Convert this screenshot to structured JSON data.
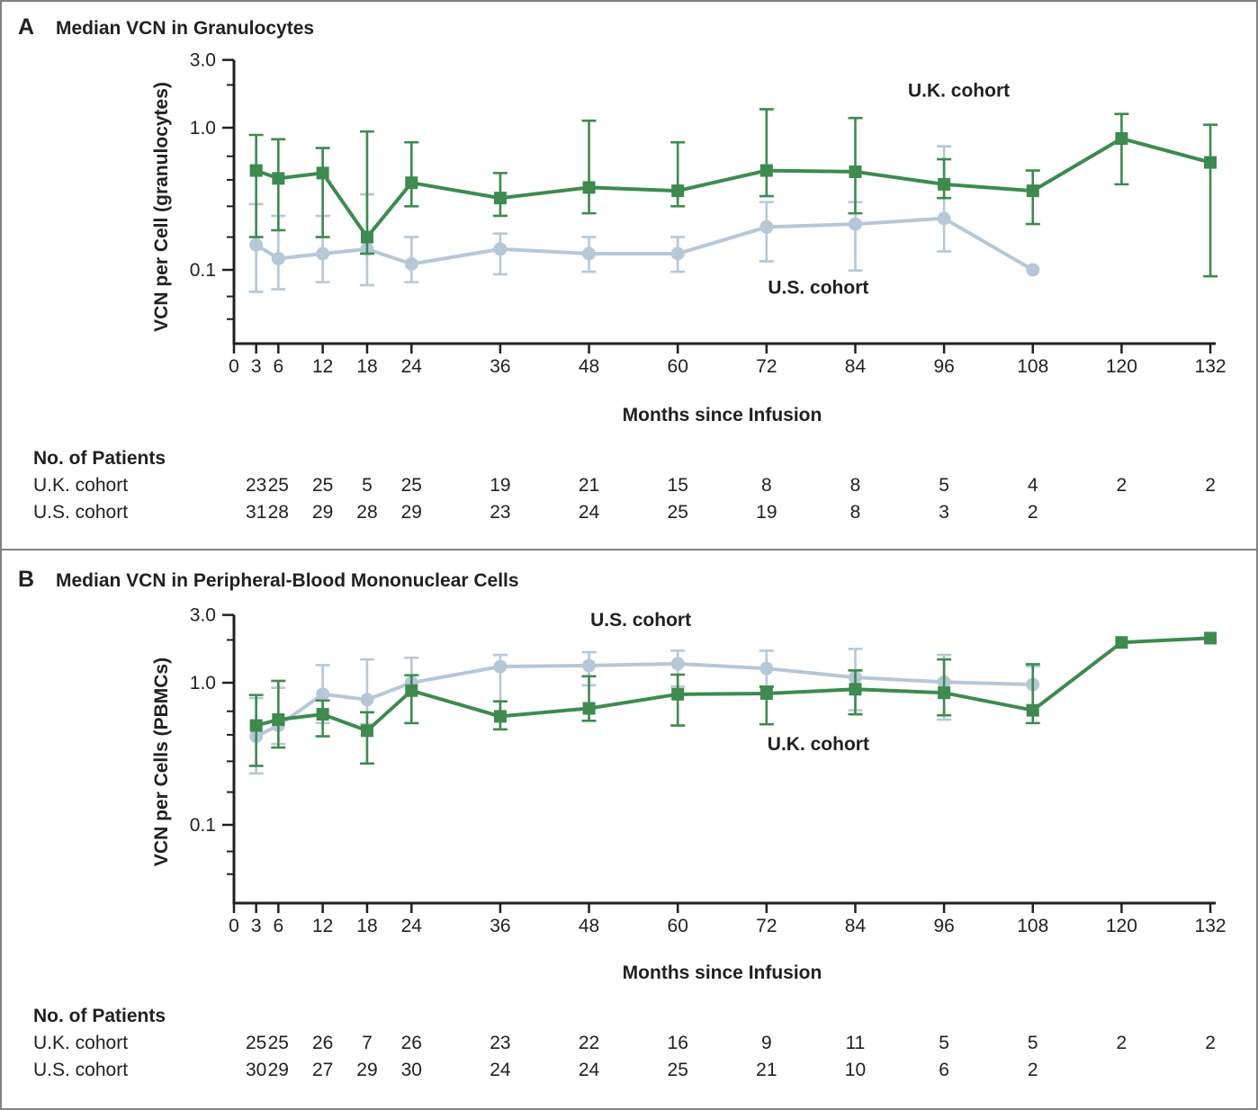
{
  "figure": {
    "background": "#ffffff",
    "frame_color": "#808285",
    "text_color": "#231F20",
    "uk_color": "#3E8A4F",
    "us_color": "#B6C8D7"
  },
  "chart_data": [
    {
      "type": "line",
      "panel_letter": "A",
      "title": "Median VCN in Granulocytes",
      "ylabel": "VCN per Cell (granulocytes)",
      "xlabel": "Months since Infusion",
      "yscale": "log",
      "ylim": [
        0.03,
        3.2
      ],
      "ytick_values": [
        3.0,
        1.0,
        0.1
      ],
      "ytick_labels": [
        "3.0",
        "1.0",
        "0.1"
      ],
      "minor_ytick_values": [
        2.0,
        0.63,
        0.43,
        0.28,
        0.17,
        0.065,
        0.045
      ],
      "x_tick_values": [
        0,
        3,
        6,
        12,
        18,
        24,
        36,
        48,
        60,
        72,
        84,
        96,
        108,
        120,
        132
      ],
      "x": [
        3,
        6,
        12,
        18,
        24,
        36,
        48,
        60,
        72,
        84,
        96,
        108,
        120,
        132
      ],
      "series": [
        {
          "name": "U.K. cohort",
          "marker": "square",
          "color": "#3E8A4F",
          "values": [
            0.5,
            0.44,
            0.48,
            0.17,
            0.41,
            0.32,
            0.38,
            0.36,
            0.5,
            0.49,
            0.4,
            0.36,
            0.84,
            0.57
          ],
          "err_lo": [
            0.17,
            0.19,
            0.17,
            0.13,
            0.28,
            0.24,
            0.25,
            0.28,
            0.33,
            0.25,
            0.32,
            0.21,
            0.4,
            0.09
          ],
          "err_hi": [
            0.89,
            0.83,
            0.72,
            0.94,
            0.79,
            0.48,
            1.12,
            0.79,
            1.35,
            1.17,
            0.6,
            0.5,
            1.25,
            1.05
          ]
        },
        {
          "name": "U.S. cohort",
          "marker": "circle",
          "color": "#B6C8D7",
          "values": [
            0.15,
            0.12,
            0.13,
            0.14,
            0.11,
            0.14,
            0.13,
            0.13,
            0.2,
            0.21,
            0.23,
            0.1,
            null,
            null
          ],
          "err_lo": [
            0.07,
            0.073,
            0.082,
            0.078,
            0.082,
            0.093,
            0.097,
            0.097,
            0.115,
            0.099,
            0.135,
            null,
            null,
            null
          ],
          "err_hi": [
            0.29,
            0.24,
            0.24,
            0.34,
            0.17,
            0.18,
            0.17,
            0.17,
            0.3,
            0.3,
            0.74,
            null,
            null,
            null
          ]
        }
      ],
      "annotations": [
        {
          "text": "U.K. cohort",
          "month": 98,
          "value": 1.65
        },
        {
          "text": "U.S. cohort",
          "month": 79,
          "value": 0.068
        }
      ],
      "patients_header": "No. of Patients",
      "patients": [
        {
          "label": "U.K. cohort",
          "counts": [
            23,
            25,
            25,
            5,
            25,
            19,
            21,
            15,
            8,
            8,
            5,
            4,
            2,
            2
          ]
        },
        {
          "label": "U.S. cohort",
          "counts": [
            31,
            28,
            29,
            28,
            29,
            23,
            24,
            25,
            19,
            8,
            3,
            2
          ]
        }
      ]
    },
    {
      "type": "line",
      "panel_letter": "B",
      "title": "Median VCN in Peripheral-Blood Mononuclear Cells",
      "ylabel": "VCN per Cells (PBMCs)",
      "xlabel": "Months since Infusion",
      "yscale": "log",
      "ylim": [
        0.03,
        3.2
      ],
      "ytick_values": [
        3.0,
        1.0,
        0.1
      ],
      "ytick_labels": [
        "3.0",
        "1.0",
        "0.1"
      ],
      "minor_ytick_values": [
        2.0,
        0.63,
        0.43,
        0.28,
        0.17,
        0.065,
        0.045
      ],
      "x_tick_values": [
        0,
        3,
        6,
        12,
        18,
        24,
        36,
        48,
        60,
        72,
        84,
        96,
        108,
        120,
        132
      ],
      "x": [
        3,
        6,
        12,
        18,
        24,
        36,
        48,
        60,
        72,
        84,
        96,
        108,
        120,
        132
      ],
      "series": [
        {
          "name": "U.K. cohort",
          "marker": "square",
          "color": "#3E8A4F",
          "values": [
            0.5,
            0.55,
            0.6,
            0.46,
            0.88,
            0.58,
            0.66,
            0.83,
            0.84,
            0.9,
            0.85,
            0.64,
            1.92,
            2.06
          ],
          "err_lo": [
            0.26,
            0.35,
            0.42,
            0.27,
            0.52,
            0.47,
            0.54,
            0.5,
            0.51,
            0.6,
            0.59,
            0.52,
            null,
            null
          ],
          "err_hi": [
            0.82,
            1.03,
            0.75,
            0.62,
            1.13,
            0.74,
            1.11,
            1.14,
            0.94,
            1.22,
            1.46,
            1.35,
            null,
            null
          ]
        },
        {
          "name": "U.S. cohort",
          "marker": "circle",
          "color": "#B6C8D7",
          "values": [
            0.42,
            0.5,
            0.83,
            0.76,
            1.0,
            1.3,
            1.32,
            1.36,
            1.26,
            1.09,
            1.01,
            0.97,
            null,
            null
          ],
          "err_lo": [
            0.23,
            0.37,
            0.52,
            0.51,
            0.52,
            0.47,
            0.96,
            0.94,
            0.93,
            0.64,
            0.55,
            0.69,
            null,
            null
          ],
          "err_hi": [
            0.78,
            0.92,
            1.33,
            1.46,
            1.5,
            1.57,
            1.64,
            1.68,
            1.68,
            1.73,
            1.57,
            1.3,
            null,
            null
          ]
        }
      ],
      "annotations": [
        {
          "text": "U.S. cohort",
          "month": 55,
          "value": 2.5
        },
        {
          "text": "U.K. cohort",
          "month": 79,
          "value": 0.335
        }
      ],
      "patients_header": "No. of Patients",
      "patients": [
        {
          "label": "U.K. cohort",
          "counts": [
            25,
            25,
            26,
            7,
            26,
            23,
            22,
            16,
            9,
            11,
            5,
            5,
            2,
            2
          ]
        },
        {
          "label": "U.S. cohort",
          "counts": [
            30,
            29,
            27,
            29,
            30,
            24,
            24,
            25,
            21,
            10,
            6,
            2
          ]
        }
      ]
    }
  ]
}
